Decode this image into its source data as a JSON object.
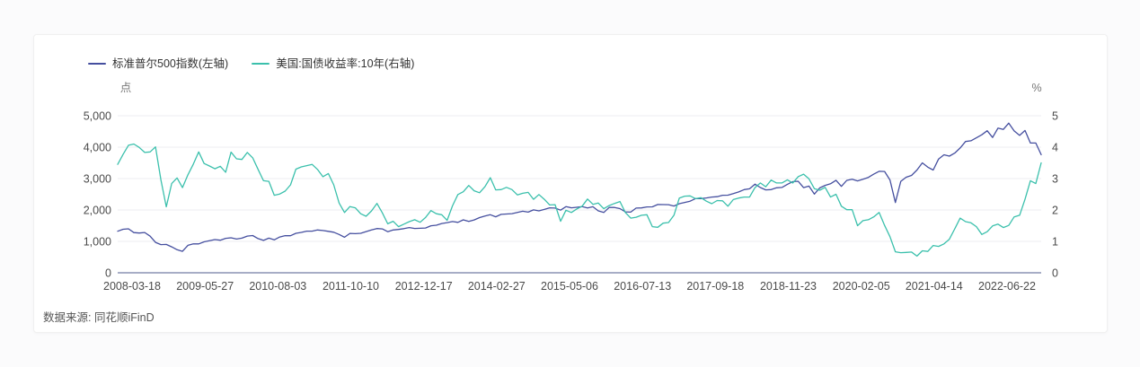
{
  "page": {
    "source_note": "数据来源: 同花顺iFinD"
  },
  "chart_data": {
    "type": "line",
    "title": "",
    "x_frequency": "monthly",
    "x_start": "2008-03",
    "x_end": "2022-06",
    "x_tick_labels": [
      "2008-03-18",
      "2009-05-27",
      "2010-08-03",
      "2011-10-10",
      "2012-12-17",
      "2014-02-27",
      "2015-05-06",
      "2016-07-13",
      "2017-09-18",
      "2018-11-23",
      "2020-02-05",
      "2021-04-14",
      "2022-06-22"
    ],
    "left_axis": {
      "unit": "点",
      "min": 0,
      "max": 5000,
      "tick_labels": [
        "0",
        "1,000",
        "2,000",
        "3,000",
        "4,000",
        "5,000"
      ]
    },
    "right_axis": {
      "unit": "%",
      "min": 0,
      "max": 5,
      "tick_labels": [
        "0",
        "1",
        "2",
        "3",
        "4",
        "5"
      ]
    },
    "grid_color": "#ededf2",
    "axis_line_color": "#8a92b4",
    "legend_position": "top-left",
    "series": [
      {
        "name": "标准普尔500指数(左轴)",
        "axis": "left",
        "color": "#454f9f",
        "values": [
          1323,
          1386,
          1400,
          1280,
          1267,
          1283,
          1166,
          969,
          896,
          903,
          826,
          735,
          683,
          873,
          919,
          919,
          987,
          1021,
          1057,
          1036,
          1096,
          1115,
          1074,
          1104,
          1169,
          1187,
          1089,
          1031,
          1102,
          1049,
          1141,
          1183,
          1181,
          1258,
          1286,
          1327,
          1326,
          1364,
          1345,
          1321,
          1292,
          1219,
          1131,
          1253,
          1247,
          1258,
          1312,
          1366,
          1408,
          1398,
          1310,
          1362,
          1379,
          1407,
          1441,
          1412,
          1416,
          1426,
          1498,
          1515,
          1569,
          1598,
          1631,
          1606,
          1686,
          1633,
          1682,
          1757,
          1806,
          1848,
          1783,
          1859,
          1872,
          1884,
          1924,
          1960,
          1931,
          2003,
          1972,
          2018,
          2068,
          2059,
          1995,
          2105,
          2068,
          2086,
          2107,
          2063,
          2104,
          1972,
          1920,
          2079,
          2080,
          2044,
          1940,
          1932,
          2060,
          2065,
          2097,
          2099,
          2174,
          2171,
          2168,
          2126,
          2199,
          2239,
          2279,
          2364,
          2363,
          2384,
          2412,
          2423,
          2470,
          2472,
          2519,
          2575,
          2648,
          2674,
          2824,
          2714,
          2641,
          2648,
          2705,
          2718,
          2816,
          2902,
          2914,
          2712,
          2760,
          2507,
          2704,
          2784,
          2834,
          2946,
          2752,
          2942,
          2980,
          2926,
          2977,
          3038,
          3141,
          3231,
          3226,
          2954,
          2237,
          2912,
          3044,
          3100,
          3271,
          3500,
          3363,
          3270,
          3622,
          3756,
          3714,
          3811,
          3973,
          4181,
          4204,
          4298,
          4395,
          4523,
          4308,
          4605,
          4567,
          4766,
          4516,
          4374,
          4530,
          4132,
          4132,
          3760
        ]
      },
      {
        "name": "美国:国债收益率:10年(右轴)",
        "axis": "right",
        "color": "#3bc0ac",
        "values": [
          3.45,
          3.77,
          4.06,
          4.1,
          3.99,
          3.83,
          3.85,
          4.01,
          2.96,
          2.1,
          2.84,
          3.02,
          2.71,
          3.12,
          3.46,
          3.85,
          3.48,
          3.4,
          3.31,
          3.39,
          3.2,
          3.84,
          3.63,
          3.61,
          3.83,
          3.66,
          3.29,
          2.93,
          2.91,
          2.47,
          2.51,
          2.6,
          2.8,
          3.3,
          3.37,
          3.41,
          3.45,
          3.29,
          3.06,
          3.16,
          2.8,
          2.22,
          1.92,
          2.11,
          2.07,
          1.88,
          1.8,
          1.97,
          2.21,
          1.91,
          1.56,
          1.64,
          1.47,
          1.55,
          1.63,
          1.69,
          1.61,
          1.76,
          1.98,
          1.88,
          1.85,
          1.67,
          2.13,
          2.49,
          2.58,
          2.78,
          2.61,
          2.55,
          2.74,
          3.03,
          2.64,
          2.65,
          2.72,
          2.65,
          2.48,
          2.53,
          2.56,
          2.34,
          2.49,
          2.34,
          2.16,
          2.17,
          1.64,
          1.99,
          1.92,
          2.03,
          2.12,
          2.35,
          2.18,
          2.22,
          2.04,
          2.14,
          2.21,
          2.27,
          1.92,
          1.74,
          1.77,
          1.83,
          1.85,
          1.47,
          1.45,
          1.58,
          1.6,
          1.83,
          2.38,
          2.44,
          2.45,
          2.36,
          2.39,
          2.28,
          2.2,
          2.3,
          2.29,
          2.12,
          2.33,
          2.38,
          2.41,
          2.41,
          2.71,
          2.86,
          2.74,
          2.95,
          2.86,
          2.86,
          2.96,
          2.86,
          3.06,
          3.14,
          2.99,
          2.68,
          2.63,
          2.72,
          2.41,
          2.5,
          2.12,
          2.01,
          2.01,
          1.5,
          1.66,
          1.69,
          1.78,
          1.92,
          1.51,
          1.15,
          0.67,
          0.64,
          0.65,
          0.66,
          0.53,
          0.7,
          0.68,
          0.87,
          0.84,
          0.92,
          1.07,
          1.4,
          1.74,
          1.63,
          1.59,
          1.47,
          1.22,
          1.31,
          1.49,
          1.55,
          1.44,
          1.51,
          1.78,
          1.83,
          2.34,
          2.93,
          2.84,
          3.5
        ]
      }
    ]
  }
}
